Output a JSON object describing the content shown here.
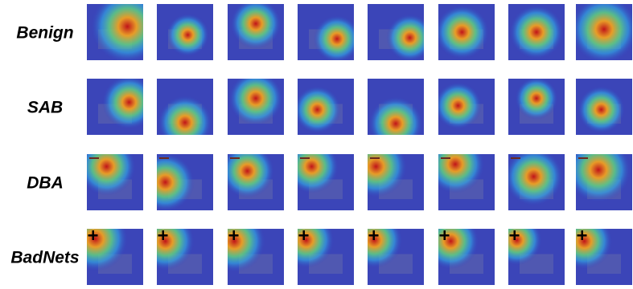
{
  "rows": [
    {
      "label": "Benign"
    },
    {
      "label": "SAB"
    },
    {
      "label": "DBA"
    },
    {
      "label": "BadNets"
    }
  ]
}
